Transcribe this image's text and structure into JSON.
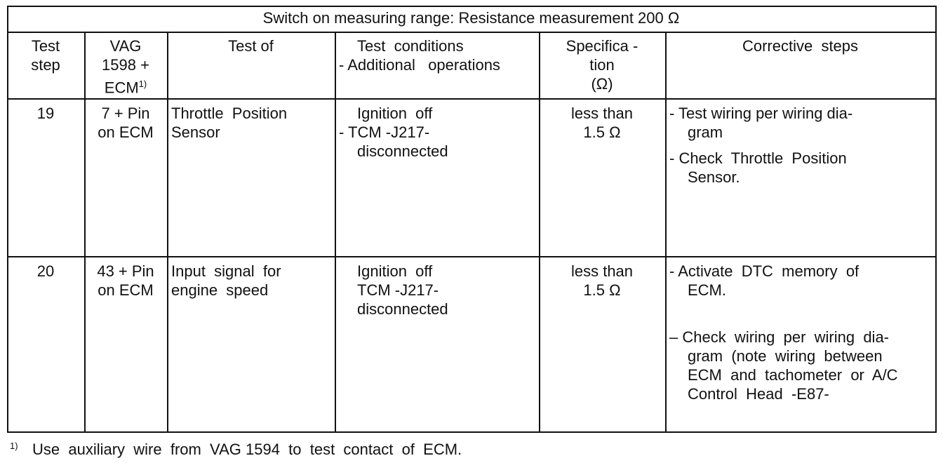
{
  "table": {
    "title": "Switch on measuring range: Resistance measurement 200 Ω",
    "columns": [
      {
        "lines": [
          "Test",
          "step"
        ]
      },
      {
        "lines": [
          "VAG",
          "1598 +",
          "ECM"
        ],
        "sup": "1)"
      },
      {
        "lines": [
          "Test of"
        ]
      },
      {
        "lines": [
          "Test  conditions",
          "- Additional   operations"
        ]
      },
      {
        "lines": [
          "Specifica -",
          "tion",
          "(Ω)"
        ]
      },
      {
        "lines": [
          "Corrective  steps"
        ]
      }
    ],
    "rows": [
      {
        "step": "19",
        "pins": [
          "7 + Pin",
          "on ECM"
        ],
        "test": [
          "Throttle  Position",
          "Sensor"
        ],
        "conditions": [
          "Ignition  off",
          "- TCM -J217-",
          "disconnected"
        ],
        "spec": [
          "less than",
          "1.5 Ω"
        ],
        "corrective": [
          [
            "- Test wiring per wiring dia-",
            "gram"
          ],
          [
            "- Check  Throttle  Position",
            "Sensor."
          ]
        ]
      },
      {
        "step": "20",
        "pins": [
          "43 + Pin",
          "on ECM"
        ],
        "test": [
          "Input  signal  for",
          "engine  speed"
        ],
        "conditions": [
          "Ignition  off",
          "TCM -J217-",
          "disconnected"
        ],
        "spec": [
          "less than",
          "1.5 Ω"
        ],
        "corrective": [
          [
            "- Activate  DTC  memory  of",
            "ECM."
          ],
          [
            "– Check  wiring  per  wiring  dia-",
            "gram  (note  wiring  between",
            "ECM  and  tachometer  or  A/C",
            "Control  Head  -E87-"
          ]
        ]
      }
    ],
    "footnote": {
      "mark": "1)",
      "text": "Use  auxiliary  wire  from  VAG 1594  to  test  contact  of  ECM."
    }
  }
}
